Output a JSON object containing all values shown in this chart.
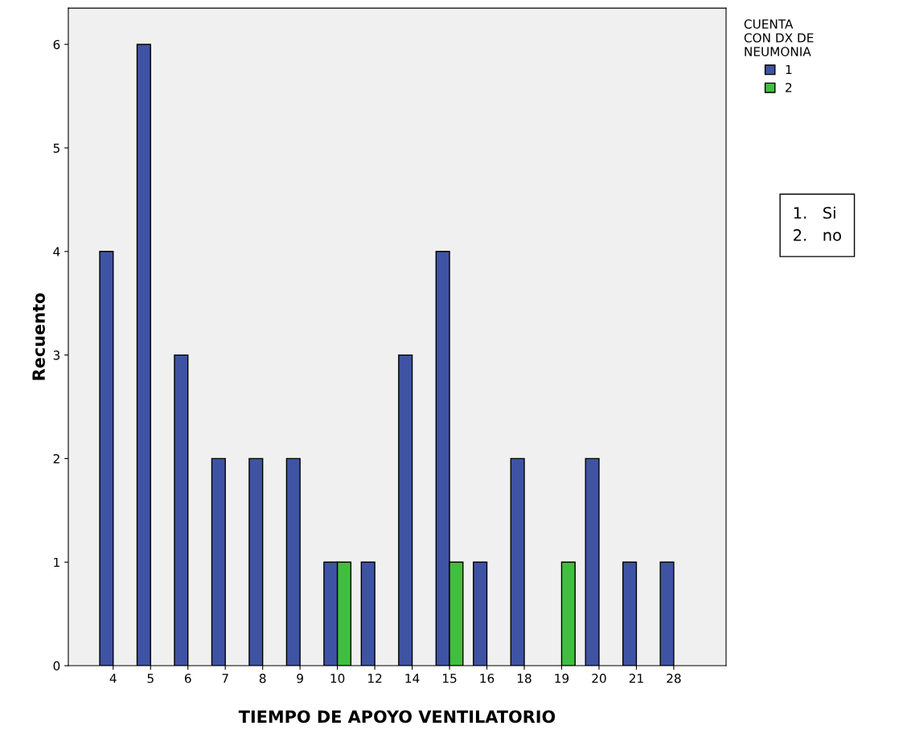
{
  "chart_data": {
    "type": "bar",
    "xlabel": "TIEMPO DE APOYO VENTILATORIO",
    "ylabel": "Recuento",
    "legend_title": "CUENTA\nCON DX DE\nNEUMONIA",
    "categories": [
      "4",
      "5",
      "6",
      "7",
      "8",
      "9",
      "10",
      "12",
      "14",
      "15",
      "16",
      "18",
      "19",
      "20",
      "21",
      "28"
    ],
    "series": [
      {
        "name": "1",
        "color": "#3e53a4",
        "values": [
          4,
          6,
          3,
          2,
          2,
          2,
          1,
          1,
          3,
          4,
          1,
          2,
          null,
          2,
          1,
          1
        ]
      },
      {
        "name": "2",
        "color": "#3fbf3f",
        "values": [
          null,
          null,
          null,
          null,
          null,
          null,
          1,
          null,
          null,
          1,
          null,
          null,
          1,
          null,
          null,
          null
        ]
      }
    ],
    "ylim": [
      0,
      6.35
    ],
    "yticks": [
      0,
      1,
      2,
      3,
      4,
      5,
      6
    ],
    "grid": false,
    "legend": "top right",
    "annotations": [
      "1.   Si\n2.   no"
    ]
  }
}
